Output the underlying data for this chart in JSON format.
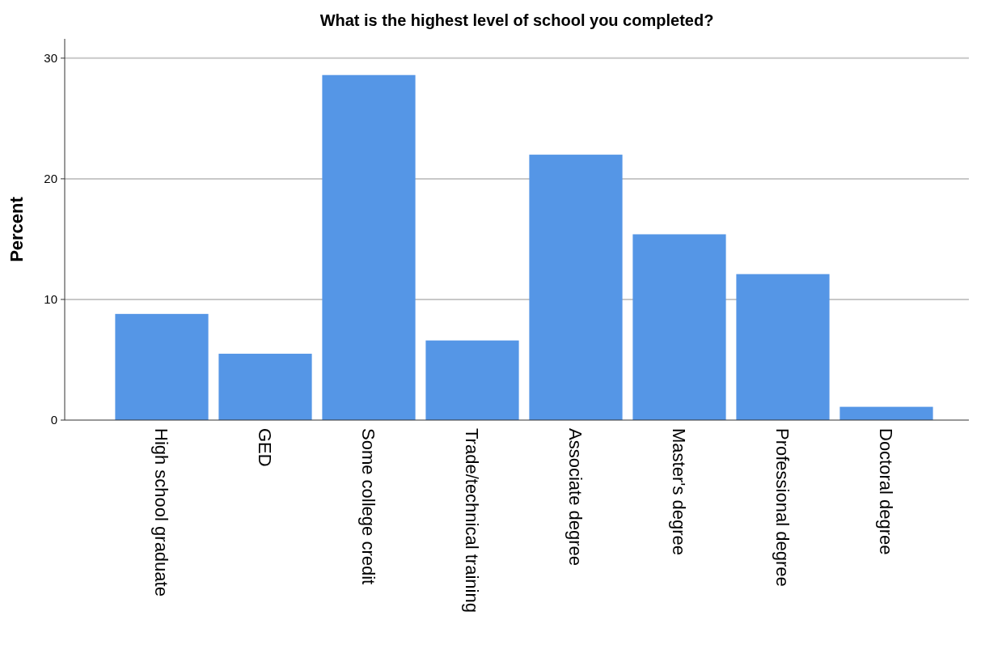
{
  "chart_data": {
    "type": "bar",
    "title": "What is the highest level of school you completed?",
    "ylabel": "Percent",
    "categories": [
      "High school graduate",
      "GED",
      "Some college credit",
      "Trade/technical training",
      "Associate degree",
      "Master's degree",
      "Professional degree",
      "Doctoral degree"
    ],
    "values": [
      8.8,
      5.5,
      28.6,
      6.6,
      22.0,
      15.4,
      12.1,
      1.1
    ],
    "color": "#5596e6",
    "ylim": [
      0,
      31.6
    ],
    "yticks": [
      0,
      10,
      20,
      30
    ],
    "grid": "y"
  }
}
